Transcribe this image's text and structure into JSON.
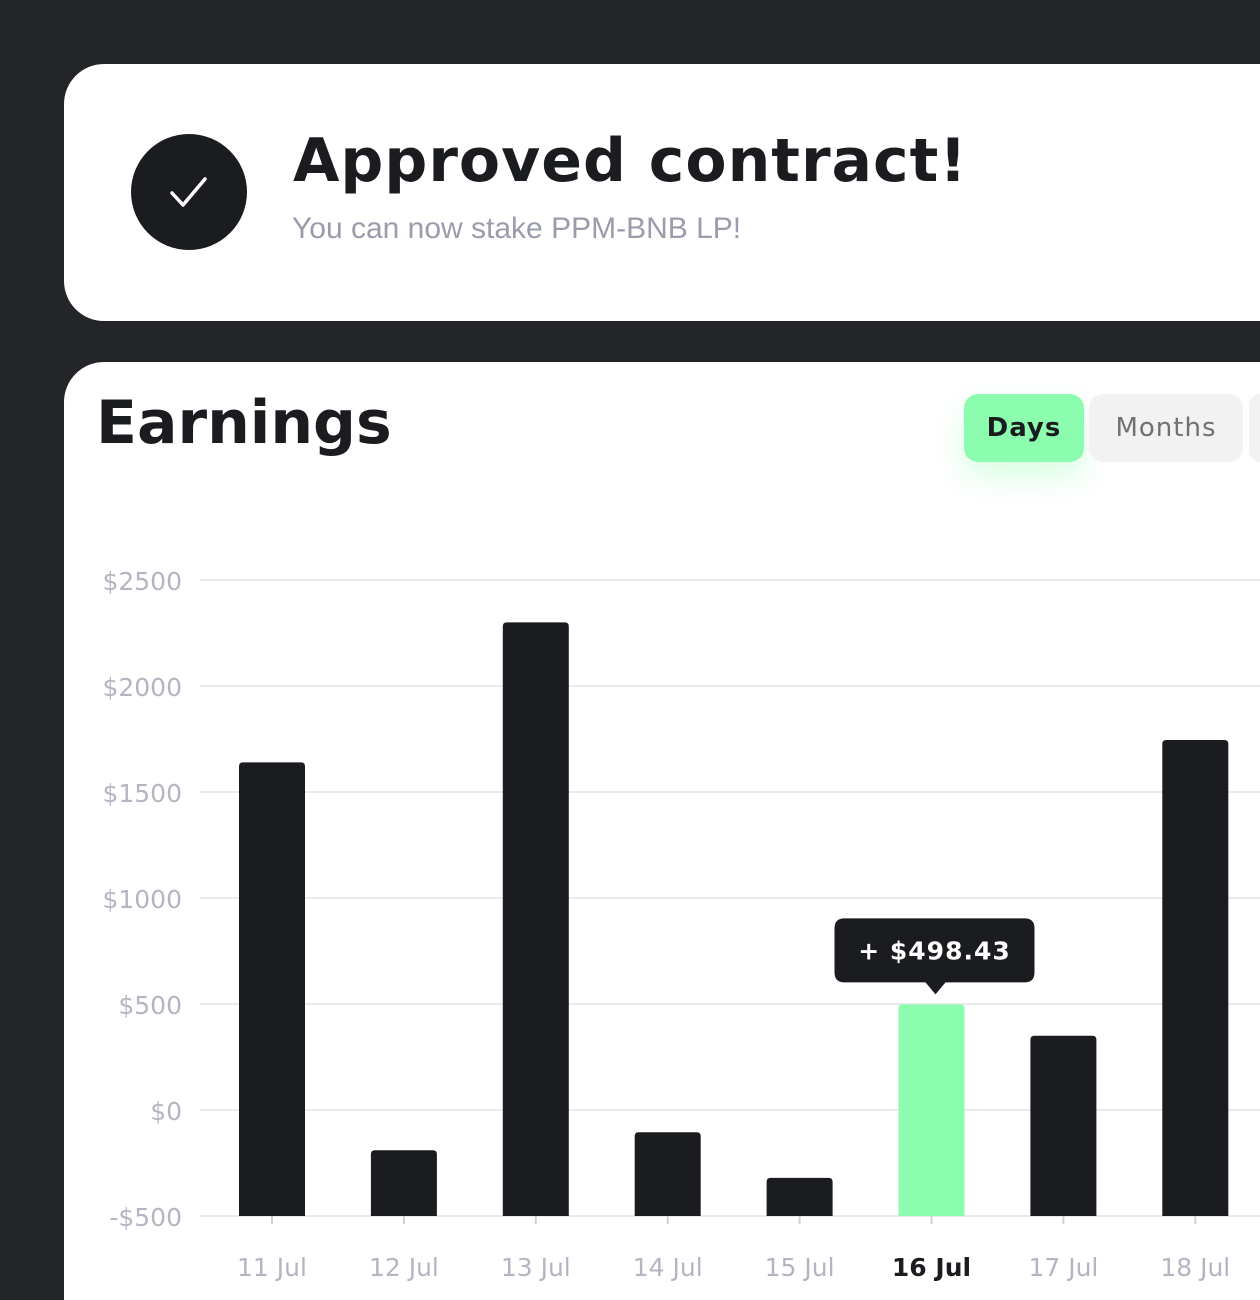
{
  "notice": {
    "title": "Approved contract!",
    "subtitle": "You can now stake PPM-BNB LP!",
    "icon": "check-icon"
  },
  "earnings": {
    "title": "Earnings",
    "tabs": [
      {
        "label": "Days",
        "active": true
      },
      {
        "label": "Months",
        "active": false
      }
    ],
    "tooltip": "+ $498.43"
  },
  "colors": {
    "bar": "#1b1c1f",
    "highlight": "#8cfdae",
    "background": "#242528"
  },
  "chart_data": {
    "type": "bar",
    "categories": [
      "11 Jul",
      "12 Jul",
      "13 Jul",
      "14 Jul",
      "15 Jul",
      "16 Jul",
      "17 Jul",
      "18 Jul"
    ],
    "values": [
      1640,
      -190,
      2300,
      -105,
      -320,
      498.43,
      350,
      1745
    ],
    "highlighted": "16 Jul",
    "ylim": [
      -500,
      2500
    ],
    "yticks": [
      2500,
      2000,
      1500,
      1000,
      500,
      0,
      -500
    ],
    "ytick_labels": [
      "$2500",
      "$2000",
      "$1500",
      "$1000",
      "$500",
      "$0",
      "-$500"
    ],
    "grid": true
  }
}
